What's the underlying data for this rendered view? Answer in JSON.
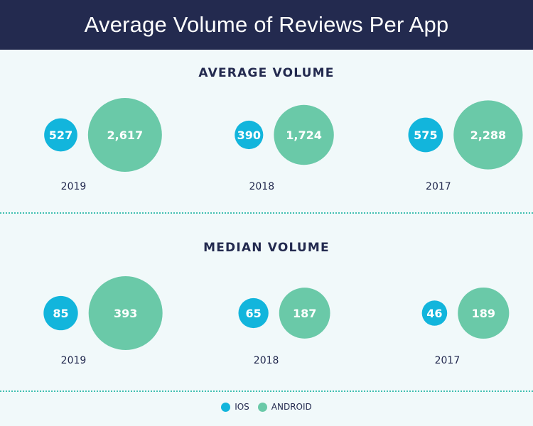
{
  "title": "Average Volume of Reviews Per App",
  "colors": {
    "ios": "#12b5dc",
    "android": "#6ac9a8",
    "header_bg": "#232a4f",
    "background": "#f1f9fa",
    "divider": "#3fbfb0"
  },
  "legend": {
    "ios": "IOS",
    "android": "ANDROID"
  },
  "chart_data": [
    {
      "type": "bubble",
      "title": "AVERAGE VOLUME",
      "categories": [
        "2019",
        "2018",
        "2017"
      ],
      "series": [
        {
          "name": "IOS",
          "values": [
            527,
            390,
            575
          ],
          "labels": [
            "527",
            "390",
            "575"
          ]
        },
        {
          "name": "ANDROID",
          "values": [
            2617,
            1724,
            2288
          ],
          "labels": [
            "2,617",
            "1,724",
            "2,288"
          ]
        }
      ]
    },
    {
      "type": "bubble",
      "title": "MEDIAN VOLUME",
      "categories": [
        "2019",
        "2018",
        "2017"
      ],
      "series": [
        {
          "name": "IOS",
          "values": [
            85,
            65,
            46
          ],
          "labels": [
            "85",
            "65",
            "46"
          ]
        },
        {
          "name": "ANDROID",
          "values": [
            393,
            187,
            189
          ],
          "labels": [
            "393",
            "187",
            "189"
          ]
        }
      ]
    }
  ]
}
